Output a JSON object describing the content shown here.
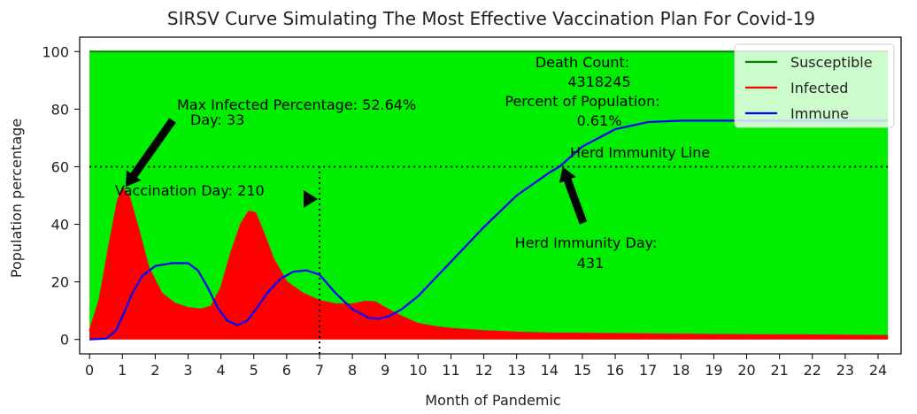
{
  "chart_data": {
    "type": "area",
    "title": "SIRSV Curve Simulating The Most Effective Vaccination Plan For Covid-19",
    "xlabel": "Month of Pandemic",
    "ylabel": "Population percentage",
    "xlim": [
      -0.3,
      24.7
    ],
    "ylim": [
      -5,
      105
    ],
    "xticks": [
      0,
      1,
      2,
      3,
      4,
      5,
      6,
      7,
      8,
      9,
      10,
      11,
      12,
      13,
      14,
      15,
      16,
      17,
      18,
      19,
      20,
      21,
      22,
      23,
      24
    ],
    "yticks": [
      0,
      20,
      40,
      60,
      80,
      100
    ],
    "grid": false,
    "legend_position": "top-right",
    "legend": [
      {
        "name": "Susceptible",
        "color": "#008000"
      },
      {
        "name": "Infected",
        "color": "#ff0000"
      },
      {
        "name": "Immune",
        "color": "#0000ff"
      }
    ],
    "colors": {
      "susceptible_fill": "#00ee00",
      "infected_fill": "#ff0000",
      "immune_line": "#0000ff",
      "reference_line": "#000000"
    },
    "series": [
      {
        "name": "Susceptible",
        "style": "filled area",
        "x": [
          0,
          24.3
        ],
        "y": [
          100,
          100
        ]
      },
      {
        "name": "Infected",
        "style": "filled area",
        "x": [
          0,
          0.3,
          0.6,
          0.85,
          1.0,
          1.2,
          1.5,
          1.8,
          2.2,
          2.6,
          3.0,
          3.4,
          3.7,
          4.0,
          4.3,
          4.6,
          4.85,
          5.05,
          5.3,
          5.6,
          6.0,
          6.5,
          7.0,
          7.5,
          8.0,
          8.4,
          8.7,
          9.0,
          9.5,
          10.0,
          10.5,
          11.0,
          12.0,
          13.0,
          14.0,
          16.0,
          18.0,
          20.0,
          22.0,
          24.3
        ],
        "y": [
          3,
          14,
          33,
          48,
          52.6,
          50,
          38,
          25,
          16,
          12.5,
          11,
          10.5,
          11.5,
          18,
          30,
          40,
          44.5,
          44,
          37,
          28,
          20,
          16,
          13.5,
          12.3,
          12.3,
          13.2,
          13,
          11,
          8,
          5.5,
          4.5,
          3.8,
          3,
          2.5,
          2.2,
          2,
          1.8,
          1.6,
          1.5,
          1.3
        ]
      },
      {
        "name": "Immune",
        "style": "line",
        "x": [
          0,
          0.5,
          0.8,
          1.0,
          1.3,
          1.6,
          2.0,
          2.5,
          3.0,
          3.3,
          3.6,
          3.9,
          4.2,
          4.5,
          4.8,
          5.1,
          5.4,
          5.8,
          6.2,
          6.6,
          7.0,
          7.5,
          8.0,
          8.5,
          8.8,
          9.1,
          9.5,
          10.0,
          10.5,
          11.0,
          12.0,
          13.0,
          14.0,
          14.3,
          15.0,
          16.0,
          17.0,
          18.0,
          19.0,
          20.0,
          21.0,
          22.0,
          23.0,
          24.3
        ],
        "y": [
          0,
          0.3,
          3,
          8,
          16,
          22,
          25.5,
          26.5,
          26.5,
          24,
          18,
          11,
          6.5,
          5,
          6.5,
          11,
          16,
          21,
          23.5,
          24,
          22.5,
          16,
          10.5,
          7.5,
          7.2,
          8,
          10.5,
          15,
          21,
          27,
          39,
          50,
          58,
          60,
          67,
          73,
          75.5,
          76,
          76,
          76,
          76,
          76,
          76,
          76
        ]
      }
    ],
    "reference_lines": [
      {
        "orientation": "horizontal",
        "y": 60,
        "style": "dotted",
        "label": "Herd Immunity Line"
      },
      {
        "orientation": "vertical",
        "x": 7.0,
        "y_range": [
          -5,
          60
        ],
        "style": "dotted"
      }
    ],
    "annotations": [
      {
        "id": "max_infected",
        "lines": [
          "Max Infected Percentage: 52.64%",
          "Day: 33"
        ],
        "arrow_to": {
          "x": 1.1,
          "y": 53
        }
      },
      {
        "id": "vaccination_day",
        "lines": [
          "Vaccination Day: 210"
        ],
        "arrow_to": {
          "x": 7.0,
          "y": 50
        }
      },
      {
        "id": "death_count",
        "lines": [
          "Death Count:",
          "4318245",
          "Percent of Population:",
          "0.61%"
        ]
      },
      {
        "id": "herd_immunity_day",
        "lines": [
          "Herd Immunity Day:",
          "431"
        ],
        "arrow_to": {
          "x": 14.4,
          "y": 60
        }
      }
    ]
  }
}
